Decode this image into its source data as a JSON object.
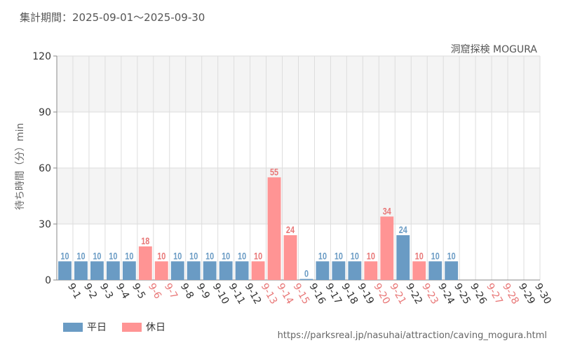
{
  "colors": {
    "weekday": "#6a9bc4",
    "holiday": "#ff9494",
    "weekday_label": "#444444",
    "holiday_label": "#e87777",
    "band_fill": "#f4f4f4",
    "grid": "#dddddd",
    "axis": "#888888"
  },
  "header": {
    "period": "集計期間：2025-09-01～2025-09-30",
    "attraction": "洞窟探検 MOGURA"
  },
  "legend": {
    "weekday": "平日",
    "holiday": "休日"
  },
  "source_url": "https://parksreal.jp/nasuhai/attraction/caving_mogura.html",
  "chart_data": {
    "type": "bar",
    "title": "洞窟探検 MOGURA",
    "ylabel": "待ち時間（分）min",
    "xlabel": "",
    "ylim": [
      0,
      120
    ],
    "yticks": [
      0,
      30,
      60,
      90,
      120
    ],
    "grid": true,
    "legend_position": "bottom-left",
    "categories": [
      "9-1",
      "9-2",
      "9-3",
      "9-4",
      "9-5",
      "9-6",
      "9-7",
      "9-8",
      "9-9",
      "9-10",
      "9-11",
      "9-12",
      "9-13",
      "9-14",
      "9-15",
      "9-16",
      "9-17",
      "9-18",
      "9-19",
      "9-20",
      "9-21",
      "9-22",
      "9-23",
      "9-24",
      "9-25",
      "9-26",
      "9-27",
      "9-28",
      "9-29",
      "9-30"
    ],
    "values": [
      10,
      10,
      10,
      10,
      10,
      18,
      10,
      10,
      10,
      10,
      10,
      10,
      10,
      55,
      24,
      0,
      10,
      10,
      10,
      10,
      34,
      24,
      10,
      10,
      10,
      null,
      null,
      null,
      null,
      null
    ],
    "day_type": [
      "weekday",
      "weekday",
      "weekday",
      "weekday",
      "weekday",
      "holiday",
      "holiday",
      "weekday",
      "weekday",
      "weekday",
      "weekday",
      "weekday",
      "holiday",
      "holiday",
      "holiday",
      "weekday",
      "weekday",
      "weekday",
      "weekday",
      "holiday",
      "holiday",
      "weekday",
      "holiday",
      "weekday",
      "weekday",
      "weekday",
      "holiday",
      "holiday",
      "weekday",
      "weekday"
    ]
  }
}
